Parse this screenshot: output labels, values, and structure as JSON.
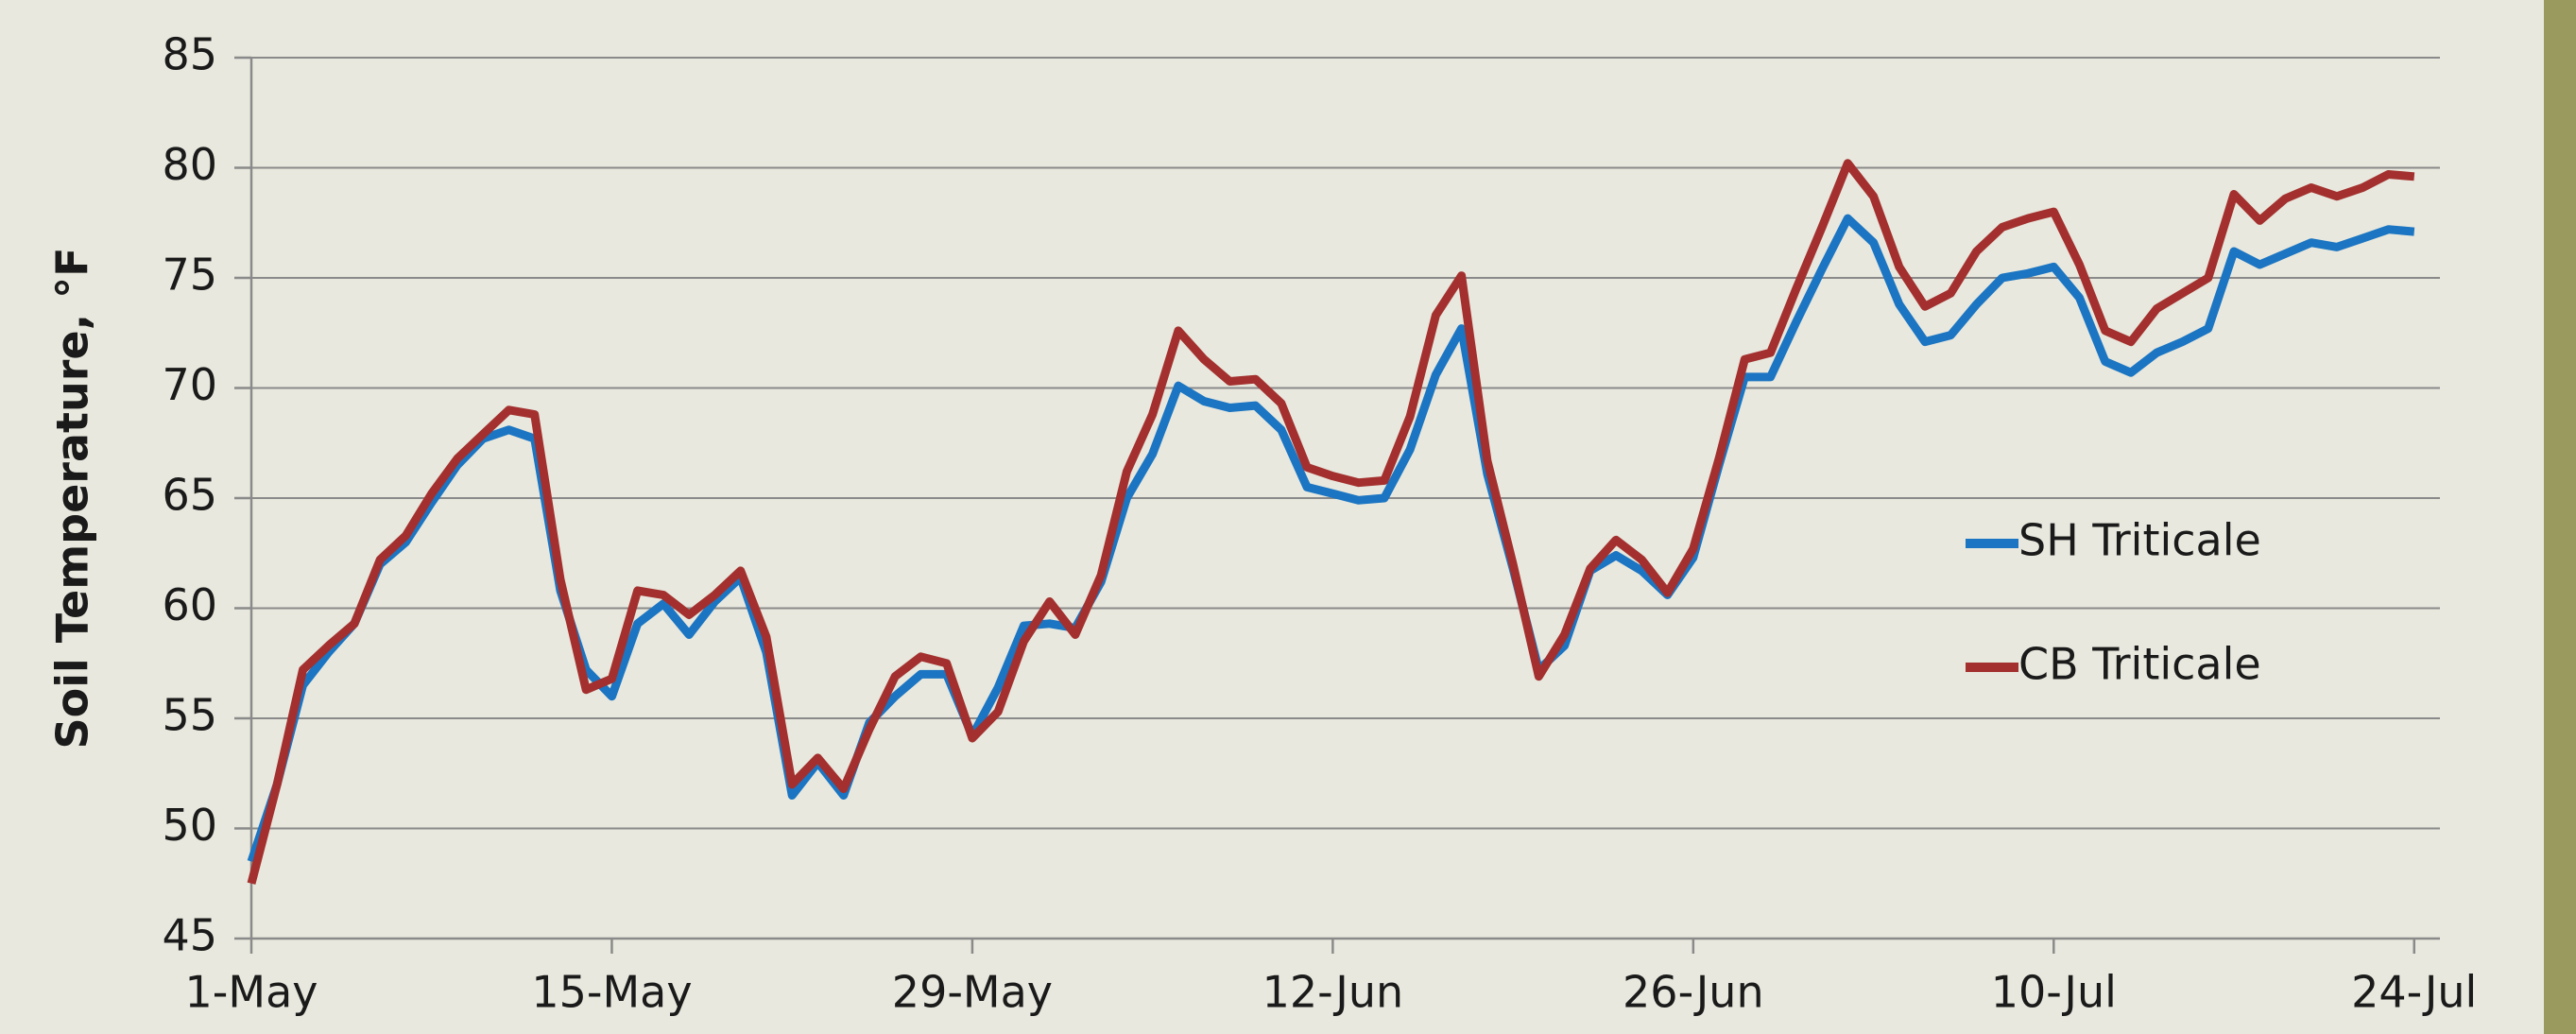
{
  "chart_data": {
    "type": "line",
    "y_label": "Soil Temperature, °F",
    "x": [
      0,
      1,
      2,
      3,
      4,
      5,
      6,
      7,
      8,
      9,
      10,
      11,
      12,
      13,
      14,
      15,
      16,
      17,
      18,
      19,
      20,
      21,
      22,
      23,
      24,
      25,
      26,
      27,
      28,
      29,
      30,
      31,
      32,
      33,
      34,
      35,
      36,
      37,
      38,
      39,
      40,
      41,
      42,
      43,
      44,
      45,
      46,
      47,
      48,
      49,
      50,
      51,
      52,
      53,
      54,
      55,
      56,
      57,
      58,
      59,
      60,
      61,
      62,
      63,
      64,
      65,
      66,
      67,
      68,
      69,
      70,
      71,
      72,
      73,
      74,
      75,
      76,
      77,
      78,
      79,
      80,
      81,
      82,
      83,
      84
    ],
    "series": [
      {
        "name": "SH Triticale",
        "color": "#1b75c2",
        "values": [
          48.5,
          52,
          56.5,
          58,
          59.3,
          62,
          63,
          64.8,
          66.5,
          67.7,
          68.1,
          67.7,
          60.8,
          57.2,
          56,
          59.3,
          60.2,
          58.8,
          60.3,
          61.4,
          58,
          51.5,
          53,
          51.5,
          54.8,
          56,
          57,
          57,
          54.2,
          56.4,
          59.2,
          59.3,
          59.1,
          61.2,
          65,
          67,
          70.1,
          69.4,
          69.1,
          69.2,
          68.1,
          65.5,
          65.2,
          64.9,
          65,
          67.2,
          70.6,
          72.7,
          66.1,
          61.8,
          57.2,
          58.3,
          61.7,
          62.4,
          61.7,
          60.6,
          62.3,
          66.5,
          70.5,
          70.5,
          73,
          75.4,
          77.7,
          76.6,
          73.8,
          72.1,
          72.4,
          73.8,
          75,
          75.2,
          75.5,
          74.1,
          71.2,
          70.7,
          71.6,
          72.1,
          72.7,
          76.2,
          75.6,
          76.1,
          76.6,
          76.4,
          76.8,
          77.2,
          77.1
        ]
      },
      {
        "name": "CB Triticale",
        "color": "#a3302e",
        "values": [
          47.5,
          52,
          57.2,
          58.3,
          59.3,
          62.2,
          63.3,
          65.2,
          66.8,
          67.9,
          69,
          68.8,
          61.3,
          56.3,
          56.8,
          60.8,
          60.6,
          59.7,
          60.6,
          61.7,
          58.7,
          52,
          53.2,
          51.8,
          54.5,
          56.9,
          57.8,
          57.5,
          54.1,
          55.3,
          58.5,
          60.3,
          58.8,
          61.5,
          66.2,
          68.8,
          72.6,
          71.3,
          70.3,
          70.4,
          69.3,
          66.4,
          66,
          65.7,
          65.8,
          68.7,
          73.3,
          75.1,
          66.7,
          62,
          56.9,
          58.8,
          61.8,
          63.1,
          62.2,
          60.7,
          62.7,
          66.8,
          71.3,
          71.6,
          74.5,
          77.3,
          80.2,
          78.7,
          75.5,
          73.7,
          74.3,
          76.2,
          77.3,
          77.7,
          78,
          75.6,
          72.6,
          72.1,
          73.6,
          74.3,
          75,
          78.8,
          77.6,
          78.6,
          79.1,
          78.7,
          79.1,
          79.7,
          79.6
        ]
      }
    ],
    "xlim": [
      0,
      85
    ],
    "xticks": [
      {
        "value": 0,
        "label": "1-May"
      },
      {
        "value": 14,
        "label": "15-May"
      },
      {
        "value": 28,
        "label": "29-May"
      },
      {
        "value": 42,
        "label": "12-Jun"
      },
      {
        "value": 56,
        "label": "26-Jun"
      },
      {
        "value": 70,
        "label": "10-Jul"
      },
      {
        "value": 84,
        "label": "24-Jul"
      }
    ],
    "ylim": [
      45,
      85
    ],
    "yticks": [
      45,
      50,
      55,
      60,
      65,
      70,
      75,
      80,
      85
    ],
    "grid": true,
    "legend": "right"
  }
}
